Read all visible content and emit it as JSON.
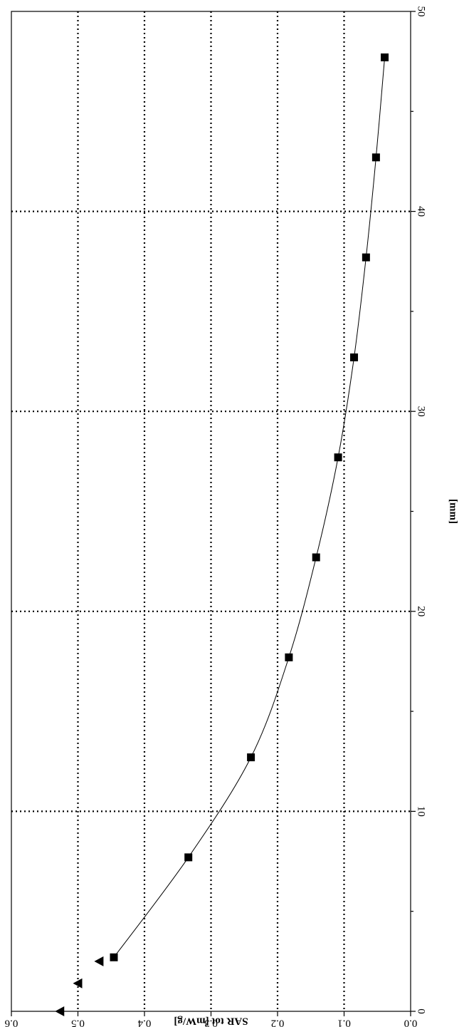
{
  "chart_data": {
    "type": "scatter",
    "orientation": "rotated-90",
    "xlabel": "[mm]",
    "ylabel": "SAR tot [mW/g]",
    "xlim": [
      0,
      50
    ],
    "ylim": [
      0,
      0.6
    ],
    "x_ticks": [
      "0",
      "10",
      "20",
      "30",
      "40",
      "50"
    ],
    "y_ticks": [
      "0.0",
      "0.1",
      "0.2",
      "0.3",
      "0.4",
      "0.5",
      "0.6"
    ],
    "grid": true,
    "series": [
      {
        "marker": "triangle",
        "x": [
          0.0,
          1.4,
          2.5
        ],
        "y": [
          0.527,
          0.5,
          0.468
        ]
      },
      {
        "marker": "square",
        "x": [
          2.7,
          7.7,
          12.7,
          17.7,
          22.7,
          27.7,
          32.7,
          37.7,
          42.7,
          47.7
        ],
        "y": [
          0.446,
          0.334,
          0.24,
          0.183,
          0.142,
          0.109,
          0.085,
          0.067,
          0.052,
          0.039
        ],
        "fit_line": true
      }
    ]
  }
}
